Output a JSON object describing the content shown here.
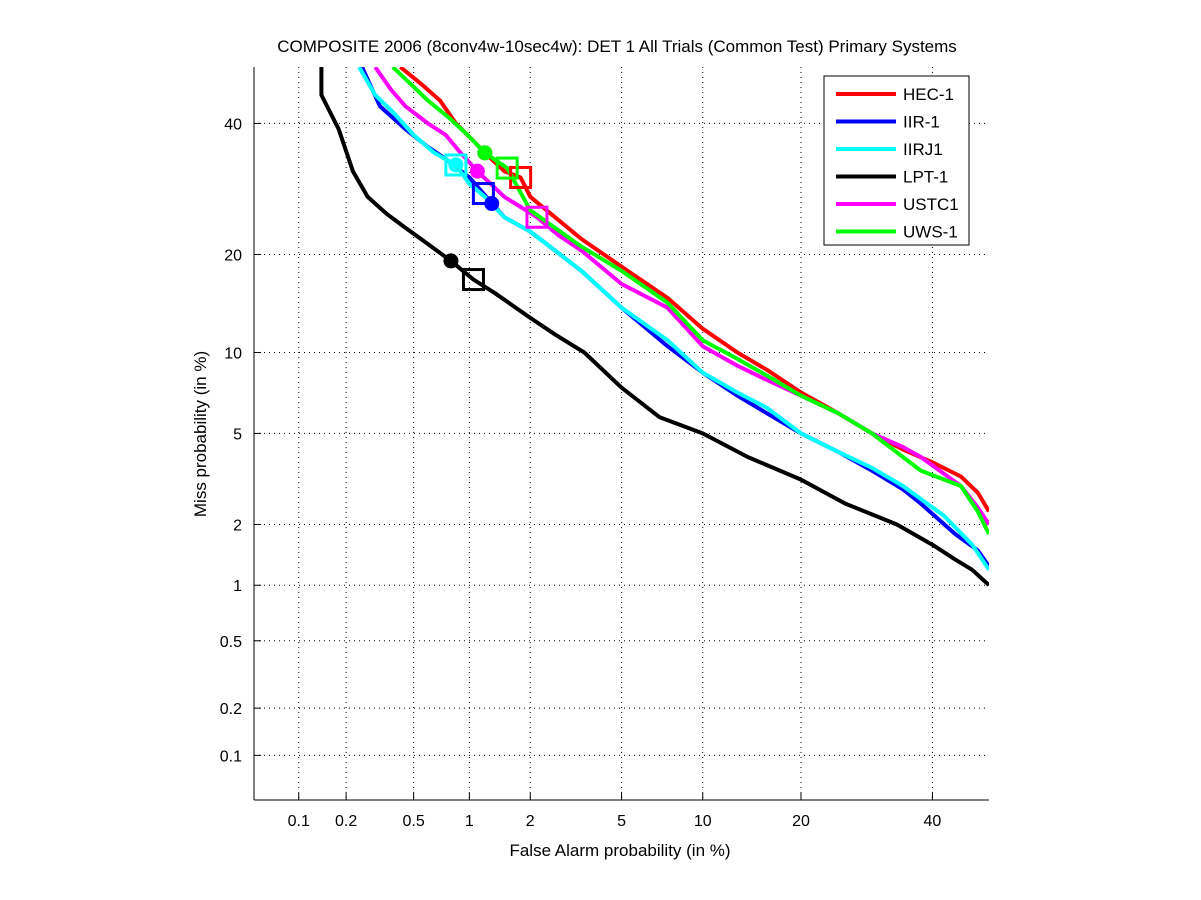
{
  "chart_data": {
    "type": "line",
    "title": "COMPOSITE 2006 (8conv4w-10sec4w): DET 1 All Trials (Common Test) Primary Systems",
    "xlabel": "False Alarm probability (in %)",
    "ylabel": "Miss probability (in %)",
    "xscale": "probit",
    "yscale": "probit",
    "xlim": [
      0.05,
      50
    ],
    "ylim": [
      0.05,
      50
    ],
    "x_ticks": [
      "0.1",
      "0.2",
      "0.5",
      "1",
      "2",
      "5",
      "10",
      "20",
      "40"
    ],
    "y_ticks": [
      "0.1",
      "0.2",
      "0.5",
      "1",
      "2",
      "5",
      "10",
      "20",
      "40"
    ],
    "grid": true,
    "legend_position": "top-right",
    "series": [
      {
        "name": "HEC-1",
        "color": "#ff0000",
        "points": [
          [
            0.42,
            50
          ],
          [
            0.55,
            47
          ],
          [
            0.7,
            44
          ],
          [
            0.85,
            40
          ],
          [
            1.05,
            37
          ],
          [
            1.2,
            35
          ],
          [
            1.5,
            32
          ],
          [
            1.8,
            31
          ],
          [
            2,
            28
          ],
          [
            2.6,
            25
          ],
          [
            3.4,
            22
          ],
          [
            5,
            18.5
          ],
          [
            7.5,
            15
          ],
          [
            10,
            12
          ],
          [
            13,
            10
          ],
          [
            16,
            8.7
          ],
          [
            20,
            7.2
          ],
          [
            25,
            6
          ],
          [
            30,
            5
          ],
          [
            35,
            4.3
          ],
          [
            40,
            3.8
          ],
          [
            45,
            3.3
          ],
          [
            48,
            2.8
          ],
          [
            50,
            2.3
          ]
        ],
        "min_dcf": [
          1.2,
          35
        ],
        "act_dcf": [
          1.8,
          31
        ]
      },
      {
        "name": "IIR-1",
        "color": "#0000ff",
        "points": [
          [
            0.25,
            50
          ],
          [
            0.32,
            43
          ],
          [
            0.45,
            39
          ],
          [
            0.6,
            36
          ],
          [
            0.75,
            34
          ],
          [
            1.0,
            31
          ],
          [
            1.18,
            28.5
          ],
          [
            1.5,
            25
          ],
          [
            2,
            23
          ],
          [
            2.6,
            20.5
          ],
          [
            3.4,
            18
          ],
          [
            5,
            14
          ],
          [
            7.5,
            10.5
          ],
          [
            10,
            8.5
          ],
          [
            13,
            7
          ],
          [
            16,
            6
          ],
          [
            20,
            5
          ],
          [
            25,
            4.2
          ],
          [
            30,
            3.5
          ],
          [
            35,
            2.9
          ],
          [
            38,
            2.5
          ],
          [
            44,
            1.8
          ],
          [
            48,
            1.5
          ],
          [
            50,
            1.25
          ]
        ],
        "min_dcf": [
          1.3,
          27
        ],
        "act_dcf": [
          1.18,
          28.5
        ]
      },
      {
        "name": "IIRJ1",
        "color": "#00ffff",
        "points": [
          [
            0.24,
            50
          ],
          [
            0.3,
            45
          ],
          [
            0.38,
            42
          ],
          [
            0.5,
            38
          ],
          [
            0.65,
            35
          ],
          [
            0.85,
            33
          ],
          [
            1.0,
            30
          ],
          [
            1.2,
            28
          ],
          [
            1.5,
            25
          ],
          [
            2,
            23
          ],
          [
            2.6,
            20.5
          ],
          [
            3.4,
            18
          ],
          [
            5,
            14
          ],
          [
            7.5,
            11
          ],
          [
            10,
            8.5
          ],
          [
            13,
            7.2
          ],
          [
            16,
            6.3
          ],
          [
            20,
            5
          ],
          [
            25,
            4.2
          ],
          [
            30,
            3.6
          ],
          [
            35,
            3
          ],
          [
            42,
            2.2
          ],
          [
            47,
            1.6
          ],
          [
            50,
            1.2
          ]
        ],
        "min_dcf": [
          0.85,
          33
        ],
        "act_dcf": [
          0.85,
          33
        ]
      },
      {
        "name": "LPT-1",
        "color": "#000000",
        "points": [
          [
            0.14,
            50
          ],
          [
            0.14,
            45
          ],
          [
            0.18,
            39
          ],
          [
            0.22,
            32
          ],
          [
            0.27,
            28
          ],
          [
            0.35,
            25.5
          ],
          [
            0.45,
            23.5
          ],
          [
            0.55,
            22
          ],
          [
            0.8,
            19.2
          ],
          [
            1.05,
            17
          ],
          [
            1.35,
            15.5
          ],
          [
            2,
            13
          ],
          [
            2.6,
            11.5
          ],
          [
            3.5,
            10
          ],
          [
            5,
            7.5
          ],
          [
            7,
            5.8
          ],
          [
            10,
            5
          ],
          [
            14,
            4
          ],
          [
            20,
            3.2
          ],
          [
            26,
            2.5
          ],
          [
            34,
            2
          ],
          [
            40,
            1.6
          ],
          [
            44,
            1.35
          ],
          [
            47,
            1.2
          ],
          [
            50,
            1.0
          ]
        ],
        "min_dcf": [
          0.8,
          19.2
        ],
        "act_dcf": [
          1.05,
          17
        ]
      },
      {
        "name": "USTC1",
        "color": "#ff00ff",
        "points": [
          [
            0.3,
            50
          ],
          [
            0.37,
            46
          ],
          [
            0.45,
            43
          ],
          [
            0.6,
            40
          ],
          [
            0.75,
            38
          ],
          [
            0.9,
            35
          ],
          [
            1.1,
            32
          ],
          [
            1.5,
            28
          ],
          [
            2.15,
            25
          ],
          [
            2.7,
            22.5
          ],
          [
            3.4,
            20.5
          ],
          [
            5,
            16.5
          ],
          [
            7.5,
            14
          ],
          [
            10,
            10.5
          ],
          [
            13,
            9
          ],
          [
            16,
            8
          ],
          [
            20,
            7
          ],
          [
            25,
            6
          ],
          [
            30,
            5
          ],
          [
            35,
            4.4
          ],
          [
            38,
            4
          ],
          [
            45,
            3
          ],
          [
            48,
            2.4
          ],
          [
            50,
            2.0
          ]
        ],
        "min_dcf": [
          1.1,
          32
        ],
        "act_dcf": [
          2.15,
          25
        ]
      },
      {
        "name": "UWS-1",
        "color": "#00ff00",
        "points": [
          [
            0.38,
            50
          ],
          [
            0.48,
            47
          ],
          [
            0.6,
            44
          ],
          [
            0.78,
            41
          ],
          [
            0.98,
            38
          ],
          [
            1.2,
            35
          ],
          [
            1.55,
            32.5
          ],
          [
            2,
            26
          ],
          [
            2.6,
            23.5
          ],
          [
            3.4,
            21
          ],
          [
            5,
            18
          ],
          [
            7.5,
            14.5
          ],
          [
            10,
            11
          ],
          [
            13,
            9.5
          ],
          [
            16,
            8.3
          ],
          [
            20,
            7
          ],
          [
            25,
            6
          ],
          [
            30,
            5
          ],
          [
            35,
            4
          ],
          [
            38,
            3.5
          ],
          [
            45,
            3
          ],
          [
            48,
            2.3
          ],
          [
            50,
            1.8
          ]
        ],
        "min_dcf": [
          1.2,
          35
        ],
        "act_dcf": [
          1.55,
          32.5
        ]
      }
    ]
  }
}
